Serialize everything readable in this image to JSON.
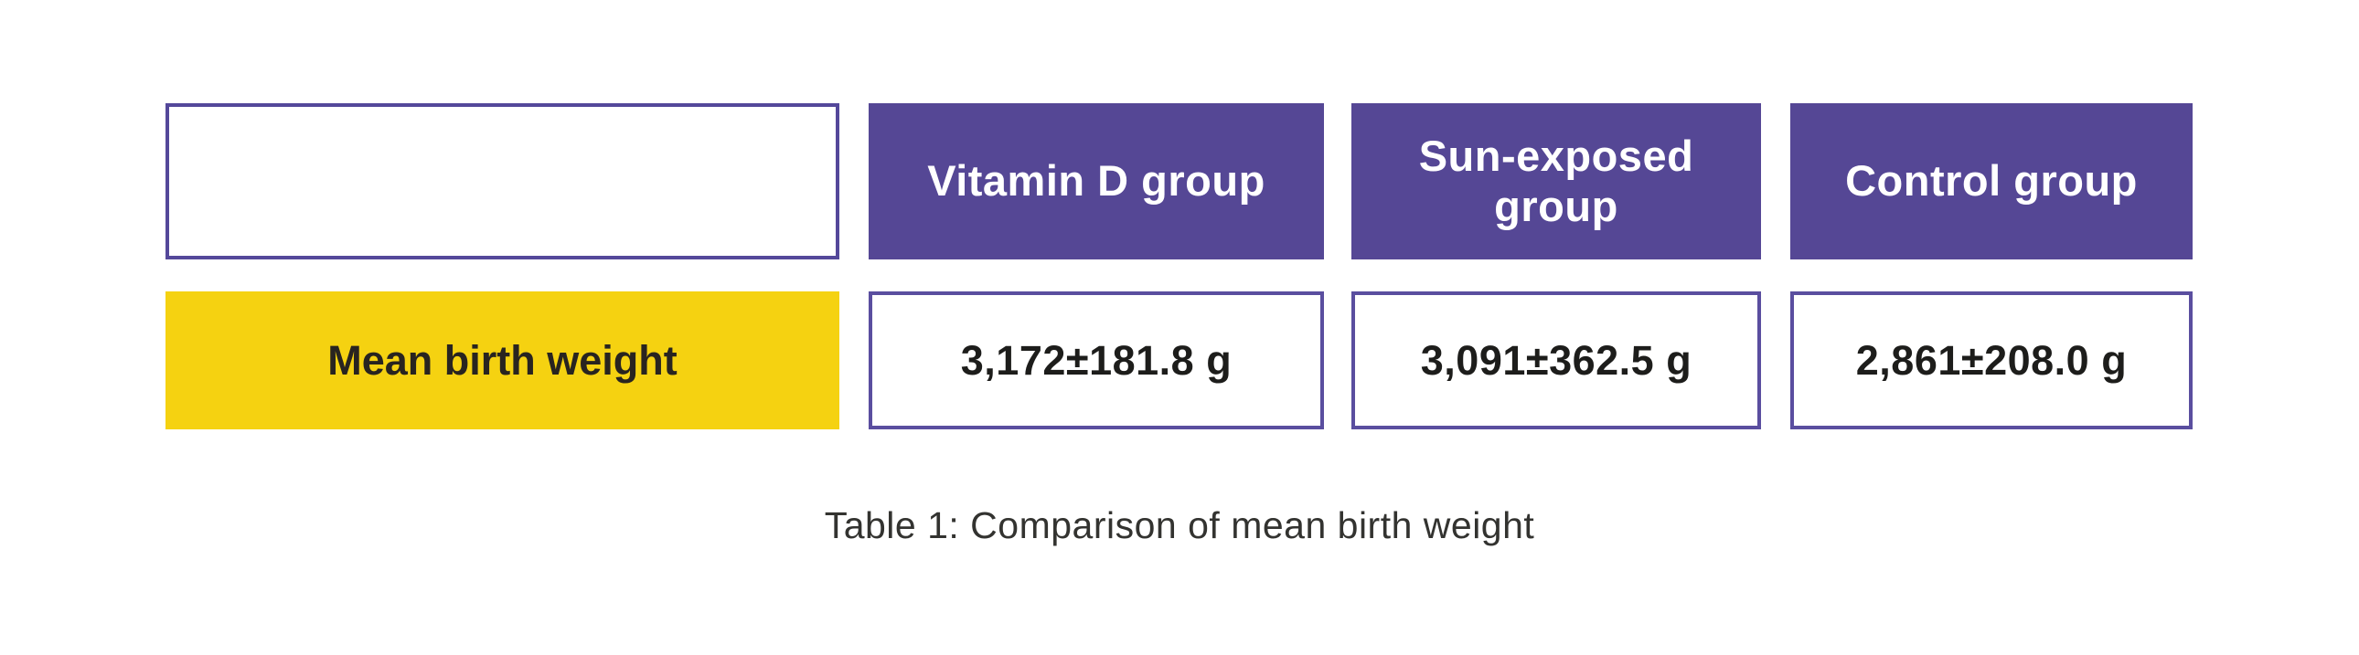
{
  "figure": {
    "caption": "Table 1: Comparison of mean birth weight",
    "row_label": "Mean birth weight",
    "columns": [
      {
        "label": "Vitamin D group",
        "value": "3,172±181.8 g"
      },
      {
        "label": "Sun-exposed group",
        "value": "3,091±362.5 g"
      },
      {
        "label": "Control group",
        "value": "2,861±208.0 g"
      }
    ]
  },
  "chart_data": {
    "type": "table",
    "title": "Table 1: Comparison of mean birth weight",
    "columns": [
      "",
      "Vitamin D group",
      "Sun-exposed group",
      "Control group"
    ],
    "rows": [
      {
        "label": "Mean birth weight",
        "display_values": [
          "3,172±181.8 g",
          "3,091±362.5 g",
          "2,861±208.0 g"
        ],
        "numeric_values": [
          {
            "mean_g": 3172,
            "sd_g": 181.8
          },
          {
            "mean_g": 3091,
            "sd_g": 362.5
          },
          {
            "mean_g": 2861,
            "sd_g": 208.0
          }
        ],
        "unit": "g"
      }
    ],
    "layout": {
      "header_row": "purple",
      "row_label_cell": "yellow",
      "caption_position": "bottom-center"
    }
  },
  "colors": {
    "header_fill": "#554795",
    "corner_border": "#54489a",
    "value_border": "#5a4e9f",
    "row_label_fill": "#f5d211",
    "header_text": "#ffffff",
    "value_text": "#1d1d1b",
    "row_label_text": "#282420",
    "caption_text": "#333330",
    "background": "#ffffff"
  }
}
